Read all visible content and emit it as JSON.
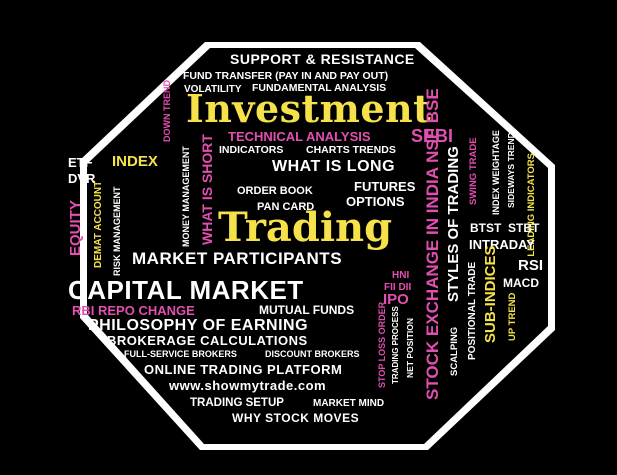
{
  "words": {
    "support_resistance": "SUPPORT & RESISTANCE",
    "fund_transfer": "FUND TRANSFER (PAY IN AND PAY OUT)",
    "volatility": "VOLATILITY",
    "fundamental_analysis": "FUNDAMENTAL ANALYSIS",
    "investment": "Investment",
    "down_trend": "DOWN TREND",
    "technical_analysis": "TECHNICAL ANALYSIS",
    "sebi": "SEBI",
    "indicators": "INDICATORS",
    "charts_trends": "CHARTS TRENDS",
    "what_is_long": "WHAT IS LONG",
    "etf": "ETF",
    "index": "INDEX",
    "dvr": "DVR",
    "equity": "EQUITY",
    "demat_account": "DEMAT ACCOUNT",
    "risk_management": "RISK MANAGEMENT",
    "money_management": "MONEY MANAGEMENT",
    "what_is_short": "WHAT IS SHORT",
    "order_book": "ORDER BOOK",
    "pan_card": "PAN CARD",
    "futures": "FUTURES",
    "options": "OPTIONS",
    "trading": "Trading",
    "stock_exchange": "STOCK EXCHANGE IN INDIA NSE BSE",
    "styles_of_trading": "STYLES OF TRADING",
    "swing_trade": "SWING TRADE",
    "index_weightage": "INDEX WEIGHTAGE",
    "sideways_trend": "SIDEWAYS TREND",
    "leading_indicators": "LEADING INDICATORS",
    "btst": "BTST",
    "stbt": "STBT",
    "intraday": "INTRADAY",
    "rsi": "RSI",
    "macd": "MACD",
    "market_participants": "MARKET PARTICIPANTS",
    "capital_market": "CAPITAL MARKET",
    "hni": "HNI",
    "fii_dii": "FII DII",
    "ipo": "IPO",
    "positional_trade": "POSITIONAL TRADE",
    "sub_indices": "SUB-INDICES",
    "up_trend": "UP TREND",
    "rbi_repo": "RBI REPO CHANGE",
    "mutual_funds": "MUTUAL FUNDS",
    "philosophy": "PHILOSOPHY OF EARNING",
    "brokerage": "BROKERAGE CALCULATIONS",
    "full_service": "FULL-SERVICE BROKERS",
    "discount_brokers": "DISCOUNT BROKERS",
    "online_platform": "ONLINE TRADING PLATFORM",
    "website": "www.showmytrade.com",
    "trading_setup": "TRADING SETUP",
    "market_mind": "MARKET MIND",
    "why_stock": "WHY STOCK MOVES",
    "stop_loss": "STOP LOSS ORDER",
    "trading_process": "TRADING PROCESS",
    "net_position": "NET POSITION",
    "scalping": "SCALPING"
  },
  "colors": {
    "background": "#000000",
    "shape": "#ffffff",
    "yellow": "#f5e24a",
    "pink": "#e24fb0"
  }
}
